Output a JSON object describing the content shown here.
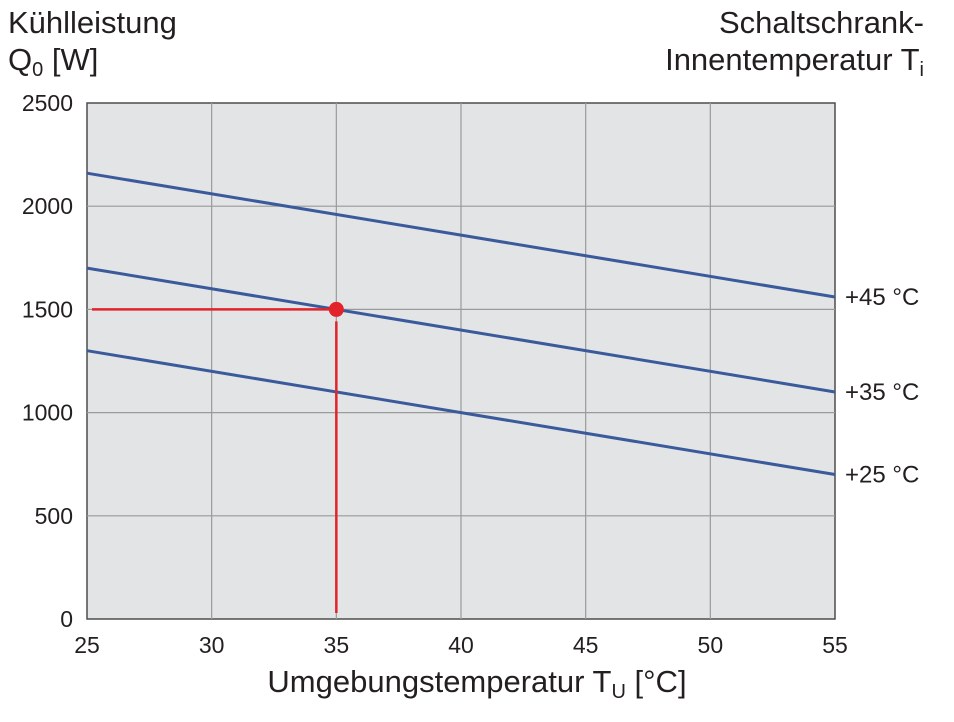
{
  "chart_data": {
    "type": "line",
    "ylabel_main": "Kühlleistung",
    "ylabel_sym": "Q",
    "ylabel_sub": "0",
    "ylabel_unit": "[W]",
    "legend_title_line1": "Schaltschrank-",
    "legend_title_line2_main": "Innentemperatur T",
    "legend_title_line2_sub": "i",
    "xlabel_main": "Umgebungstemperatur T",
    "xlabel_sub": "U",
    "xlabel_unit": "[°C]",
    "xlim": [
      25,
      55
    ],
    "ylim": [
      0,
      2500
    ],
    "xticks": [
      "25",
      "30",
      "35",
      "40",
      "45",
      "50",
      "55"
    ],
    "yticks": [
      "0",
      "500",
      "1000",
      "1500",
      "2000",
      "2500"
    ],
    "grid": true,
    "series": [
      {
        "name": "+45 °C",
        "x": [
          25,
          55
        ],
        "y": [
          2160,
          1560
        ],
        "color": "#3a5a9c"
      },
      {
        "name": "+35 °C",
        "x": [
          25,
          55
        ],
        "y": [
          1700,
          1100
        ],
        "color": "#3a5a9c"
      },
      {
        "name": "+25 °C",
        "x": [
          25,
          55
        ],
        "y": [
          1300,
          700
        ],
        "color": "#3a5a9c"
      }
    ],
    "reading_point": {
      "x": 35,
      "y": 1500,
      "color": "#e2232a"
    }
  }
}
